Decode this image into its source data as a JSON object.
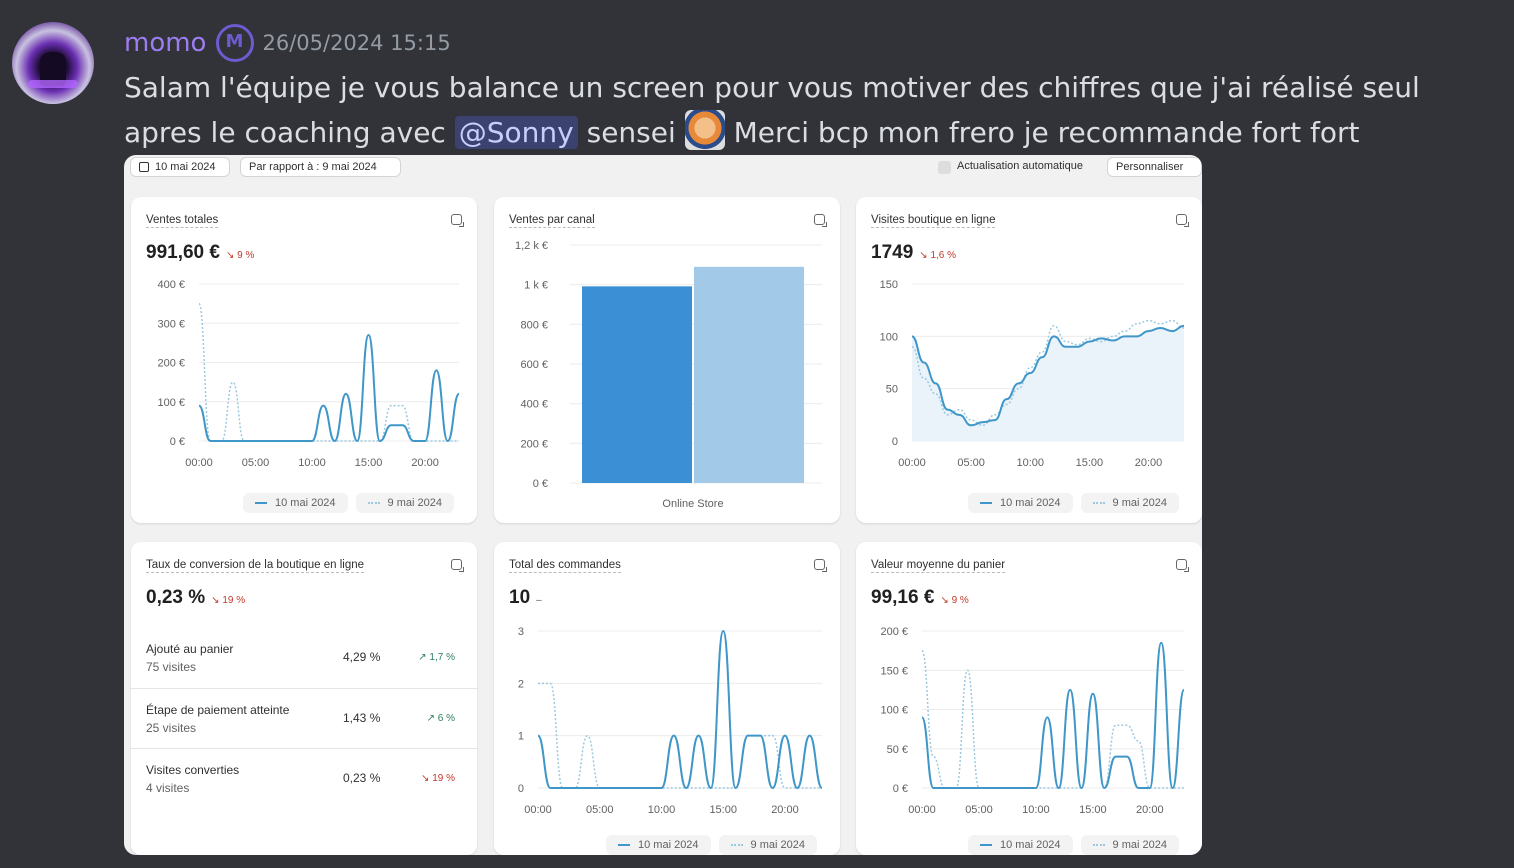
{
  "message": {
    "username": "momo",
    "timestamp": "26/05/2024 15:15",
    "text_part1": "Salam l'équipe je vous balance un screen pour vous motiver des chiffres que j'ai réalisé seul apres le coaching avec ",
    "mention": "@Sonny",
    "text_part2": " sensei ",
    "text_part3": " Merci bcp mon frero je recommande fort fort",
    "badge_icon": "guild-badge-icon",
    "emoji": "anime-character-emoji"
  },
  "dashboard": {
    "date": "10 mai 2024",
    "compare": "Par rapport à : 9 mai 2024",
    "auto_refresh": "Actualisation automatique",
    "customize": "Personnaliser",
    "legend_current": "10 mai 2024",
    "legend_previous": "9 mai 2024",
    "x_ticks": [
      "00:00",
      "05:00",
      "10:00",
      "15:00",
      "20:00"
    ],
    "colors": {
      "current": "#3f97c9",
      "previous": "#9cc8df",
      "bar1": "#3b8fd4",
      "bar2": "#a3c9e8",
      "down": "#c0392b",
      "up": "#2e7d5b"
    },
    "total_sales": {
      "title": "Ventes totales",
      "value": "991,60 €",
      "change": "↘ 9 %"
    },
    "sales_channel": {
      "title": "Ventes par canal"
    },
    "visits": {
      "title": "Visites boutique en ligne",
      "value": "1749",
      "change": "↘ 1,6 %"
    },
    "conversion": {
      "title": "Taux de conversion de la boutique en ligne",
      "value": "0,23 %",
      "change": "↘ 19 %",
      "rows": [
        {
          "label": "Ajouté au panier",
          "sub": "75 visites",
          "pct": "4,29 %",
          "change": "↗ 1,7 %"
        },
        {
          "label": "Étape de paiement atteinte",
          "sub": "25 visites",
          "pct": "1,43 %",
          "change": "↗ 6 %"
        },
        {
          "label": "Visites converties",
          "sub": "4 visites",
          "pct": "0,23 %",
          "change": "↘ 19 %"
        }
      ]
    },
    "orders": {
      "title": "Total des commandes",
      "value": "10",
      "change": "–"
    },
    "avg_cart": {
      "title": "Valeur moyenne du panier",
      "value": "99,16 €",
      "change": "↘ 9 %"
    }
  },
  "chart_data": [
    {
      "type": "line",
      "title": "Ventes totales",
      "y_ticks": [
        "400 €",
        "300 €",
        "200 €",
        "100 €",
        "0 €"
      ],
      "ylim": [
        0,
        400
      ],
      "x_ticks": [
        "00:00",
        "05:00",
        "10:00",
        "15:00",
        "20:00"
      ],
      "series": [
        {
          "name": "10 mai 2024",
          "values": [
            90,
            0,
            0,
            0,
            0,
            0,
            0,
            0,
            0,
            0,
            0,
            90,
            0,
            120,
            0,
            270,
            0,
            40,
            40,
            0,
            0,
            180,
            0,
            120
          ]
        },
        {
          "name": "9 mai 2024",
          "values": [
            350,
            0,
            0,
            150,
            0,
            0,
            0,
            0,
            0,
            0,
            0,
            0,
            0,
            0,
            0,
            0,
            0,
            90,
            90,
            0,
            0,
            0,
            0,
            0
          ]
        }
      ]
    },
    {
      "type": "bar",
      "title": "Ventes par canal",
      "categories": [
        "Online Store"
      ],
      "y_ticks": [
        "1,2 k €",
        "1 k €",
        "800 €",
        "600 €",
        "400 €",
        "200 €",
        "0 €"
      ],
      "ylim": [
        0,
        1200
      ],
      "series": [
        {
          "name": "10 mai 2024",
          "values": [
            991.6
          ]
        },
        {
          "name": "9 mai 2024",
          "values": [
            1090
          ]
        }
      ]
    },
    {
      "type": "area",
      "title": "Visites boutique en ligne",
      "y_ticks": [
        "150",
        "100",
        "50",
        "0"
      ],
      "ylim": [
        0,
        150
      ],
      "x_ticks": [
        "00:00",
        "05:00",
        "10:00",
        "15:00",
        "20:00"
      ],
      "series": [
        {
          "name": "10 mai 2024",
          "values": [
            100,
            75,
            55,
            30,
            25,
            15,
            18,
            20,
            40,
            55,
            65,
            80,
            100,
            90,
            90,
            95,
            98,
            96,
            100,
            100,
            105,
            108,
            105,
            110
          ]
        },
        {
          "name": "9 mai 2024",
          "values": [
            90,
            60,
            45,
            25,
            30,
            20,
            15,
            25,
            35,
            50,
            70,
            85,
            110,
            95,
            92,
            98,
            95,
            100,
            105,
            112,
            115,
            112,
            115,
            108
          ]
        }
      ]
    },
    {
      "type": "line",
      "title": "Total des commandes",
      "y_ticks": [
        "3",
        "2",
        "1",
        "0"
      ],
      "ylim": [
        0,
        3
      ],
      "x_ticks": [
        "00:00",
        "05:00",
        "10:00",
        "15:00",
        "20:00"
      ],
      "series": [
        {
          "name": "10 mai 2024",
          "values": [
            1,
            0,
            0,
            0,
            0,
            0,
            0,
            0,
            0,
            0,
            0,
            1,
            0,
            1,
            0,
            3,
            0,
            1,
            1,
            0,
            1,
            0,
            1,
            0
          ]
        },
        {
          "name": "9 mai 2024",
          "values": [
            2,
            2,
            0,
            0,
            1,
            0,
            0,
            0,
            0,
            0,
            0,
            0,
            0,
            0,
            0,
            0,
            0,
            1,
            1,
            1,
            0,
            0,
            0,
            0
          ]
        }
      ]
    },
    {
      "type": "line",
      "title": "Valeur moyenne du panier",
      "y_ticks": [
        "200 €",
        "150 €",
        "100 €",
        "50 €",
        "0 €"
      ],
      "ylim": [
        0,
        200
      ],
      "x_ticks": [
        "00:00",
        "05:00",
        "10:00",
        "15:00",
        "20:00"
      ],
      "series": [
        {
          "name": "10 mai 2024",
          "values": [
            90,
            0,
            0,
            0,
            0,
            0,
            0,
            0,
            0,
            0,
            0,
            90,
            0,
            125,
            0,
            120,
            0,
            40,
            40,
            0,
            0,
            185,
            0,
            125
          ]
        },
        {
          "name": "9 mai 2024",
          "values": [
            175,
            40,
            0,
            0,
            150,
            0,
            0,
            0,
            0,
            0,
            0,
            0,
            0,
            0,
            0,
            120,
            0,
            80,
            80,
            60,
            0,
            0,
            0,
            0
          ]
        }
      ]
    }
  ]
}
